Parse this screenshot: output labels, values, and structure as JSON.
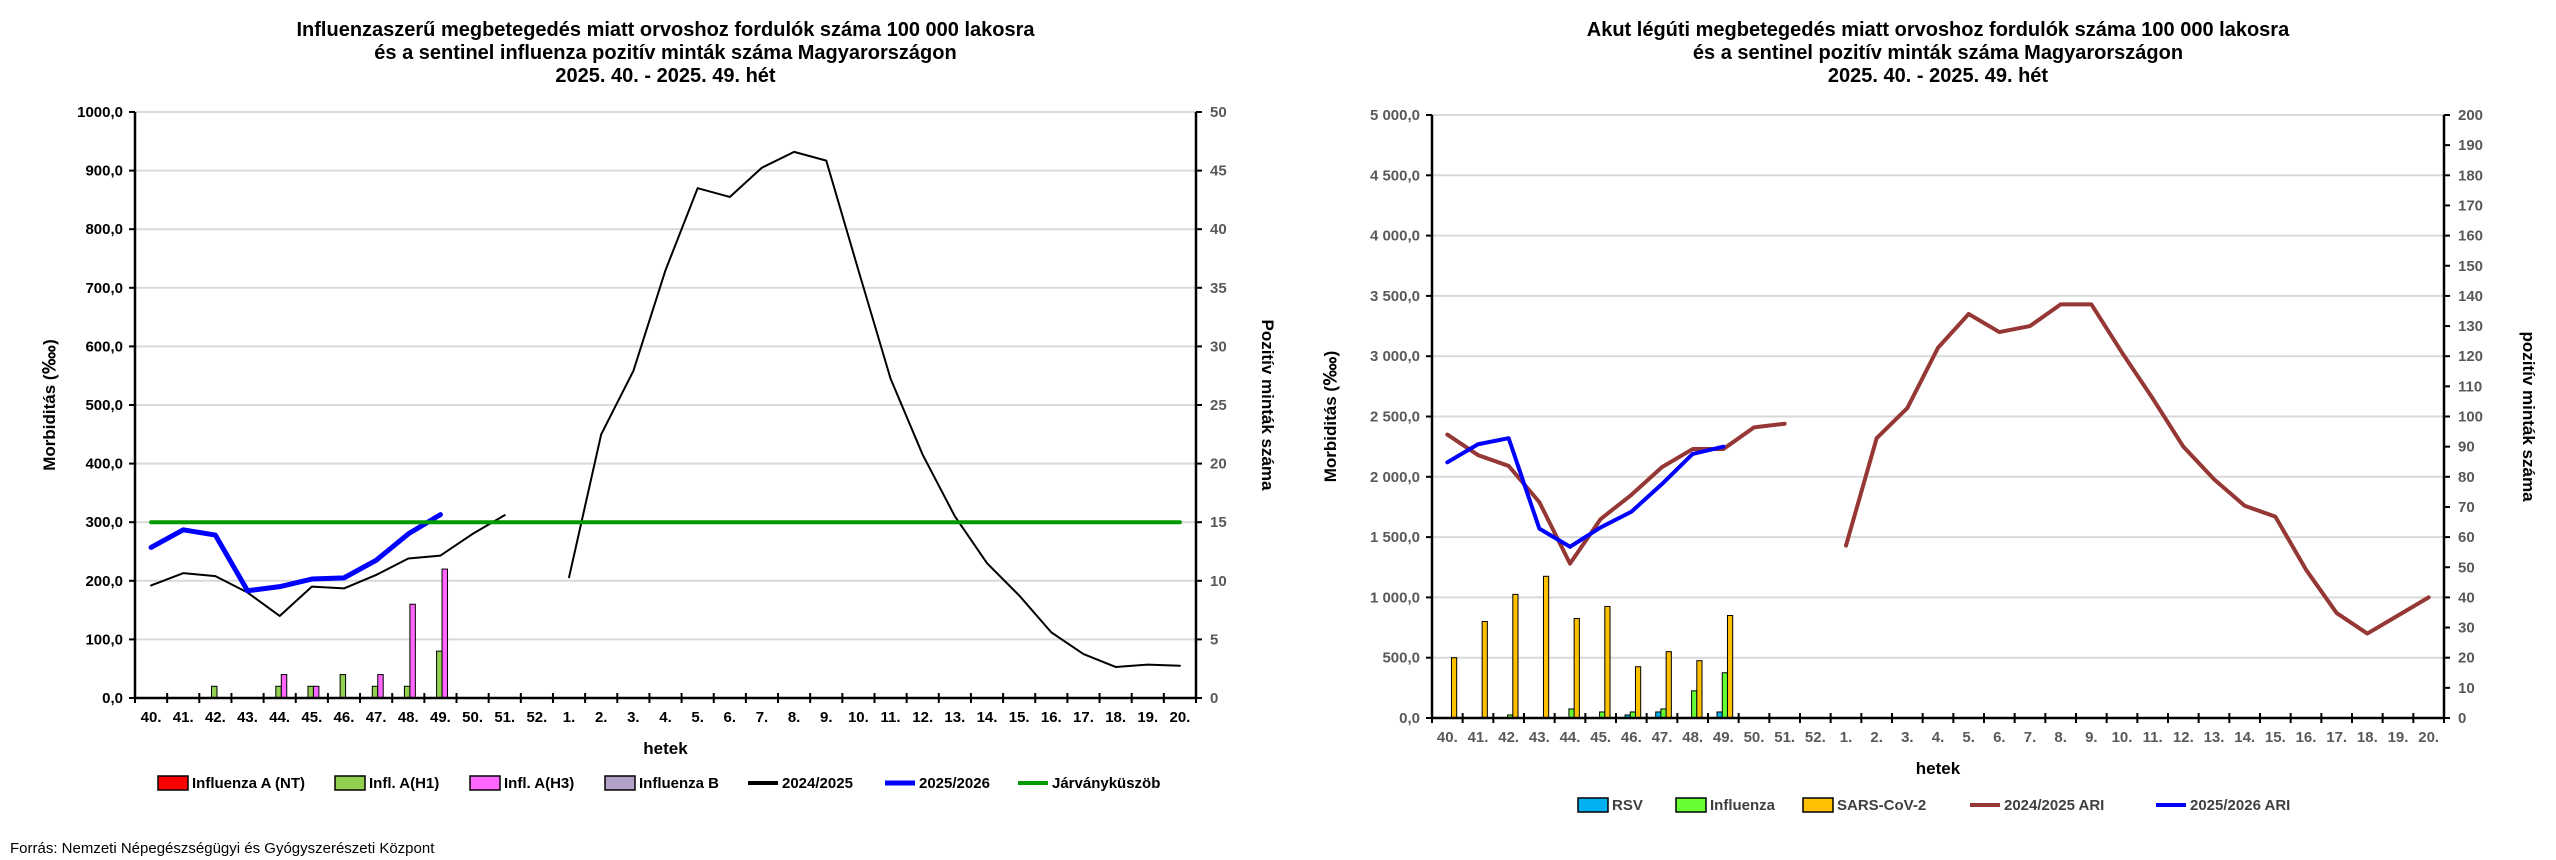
{
  "source": "Forrás: Nemzeti Népegészségügyi és Gyógyszerészeti Központ",
  "chart_data": [
    {
      "type": "bar",
      "title_lines": [
        "Influenzaszerű megbetegedés miatt orvoshoz fordulók száma 100 000 lakosra",
        "és a sentinel influenza pozitív minták száma Magyarországon",
        "2025. 40. - 2025. 49. hét"
      ],
      "xlabel": "hetek",
      "ylabel": "Morbiditás (‱)",
      "y2label": "Pozitív minták száma",
      "ylim": [
        0,
        1000
      ],
      "y2lim": [
        0,
        50
      ],
      "yticks": [
        "0,0",
        "100,0",
        "200,0",
        "300,0",
        "400,0",
        "500,0",
        "600,0",
        "700,0",
        "800,0",
        "900,0",
        "1000,0"
      ],
      "y2ticks": [
        "0",
        "5",
        "10",
        "15",
        "20",
        "25",
        "30",
        "35",
        "40",
        "45",
        "50"
      ],
      "grid": true,
      "legend_position": "bottom",
      "categories": [
        "40.",
        "41.",
        "42.",
        "43.",
        "44.",
        "45.",
        "46.",
        "47.",
        "48.",
        "49.",
        "50.",
        "51.",
        "52.",
        "1.",
        "2.",
        "3.",
        "4.",
        "5.",
        "6.",
        "7.",
        "8.",
        "9.",
        "10.",
        "11.",
        "12.",
        "13.",
        "14.",
        "15.",
        "16.",
        "17.",
        "18.",
        "19.",
        "20."
      ],
      "bar_series": [
        {
          "name": "Influenza A (NT)",
          "color": "#ff0000",
          "axis": "right",
          "values": [
            0,
            0,
            0,
            0,
            0,
            0,
            0,
            0,
            0,
            0,
            null,
            null,
            null,
            null,
            null,
            null,
            null,
            null,
            null,
            null,
            null,
            null,
            null,
            null,
            null,
            null,
            null,
            null,
            null,
            null,
            null,
            null,
            null
          ]
        },
        {
          "name": "Infl. A(H1)",
          "color": "#92d050",
          "axis": "right",
          "values": [
            0,
            0,
            1,
            0,
            1,
            1,
            2,
            1,
            1,
            4,
            null,
            null,
            null,
            null,
            null,
            null,
            null,
            null,
            null,
            null,
            null,
            null,
            null,
            null,
            null,
            null,
            null,
            null,
            null,
            null,
            null,
            null,
            null
          ]
        },
        {
          "name": "Infl. A(H3)",
          "color": "#ff66ff",
          "axis": "right",
          "values": [
            0,
            0,
            0,
            0,
            2,
            1,
            0,
            2,
            8,
            11,
            null,
            null,
            null,
            null,
            null,
            null,
            null,
            null,
            null,
            null,
            null,
            null,
            null,
            null,
            null,
            null,
            null,
            null,
            null,
            null,
            null,
            null,
            null
          ]
        },
        {
          "name": "Influenza B",
          "color": "#b3a2c7",
          "axis": "right",
          "values": [
            0,
            0,
            0,
            0,
            0,
            0,
            0,
            0,
            0,
            0,
            null,
            null,
            null,
            null,
            null,
            null,
            null,
            null,
            null,
            null,
            null,
            null,
            null,
            null,
            null,
            null,
            null,
            null,
            null,
            null,
            null,
            null,
            null
          ]
        }
      ],
      "line_series": [
        {
          "name": "2024/2025",
          "color": "#000000",
          "width": 2,
          "segments": [
            {
              "start": 0,
              "values": [
                192,
                213,
                208,
                180,
                140,
                190,
                187,
                210,
                238,
                243,
                280,
                312
              ]
            },
            {
              "start": 13,
              "values": [
                206,
                450,
                558,
                730,
                870,
                855,
                905,
                932,
                917,
                730,
                545,
                415,
                310,
                230,
                175,
                112,
                75,
                53,
                57,
                55
              ]
            }
          ]
        },
        {
          "name": "2025/2026",
          "color": "#0000ff",
          "width": 5,
          "segments": [
            {
              "start": 0,
              "values": [
                257,
                287,
                278,
                183,
                190,
                203,
                205,
                235,
                280,
                313
              ]
            }
          ]
        },
        {
          "name": "Járványküszöb",
          "color": "#009900",
          "width": 4,
          "segments": [
            {
              "start": 0,
              "values": [
                300,
                300,
                300,
                300,
                300,
                300,
                300,
                300,
                300,
                300,
                300,
                300,
                300,
                300,
                300,
                300,
                300,
                300,
                300,
                300,
                300,
                300,
                300,
                300,
                300,
                300,
                300,
                300,
                300,
                300,
                300,
                300,
                300
              ]
            }
          ]
        }
      ]
    },
    {
      "type": "bar",
      "title_lines": [
        "Akut légúti megbetegedés miatt orvoshoz fordulók száma 100 000 lakosra",
        "és a sentinel pozitív minták száma Magyarországon",
        "2025. 40. - 2025. 49. hét"
      ],
      "xlabel": "hetek",
      "ylabel": "Morbiditás (‱)",
      "y2label": "pozitív minták száma",
      "ylim": [
        0,
        5000
      ],
      "y2lim": [
        0,
        200
      ],
      "yticks": [
        "0,0",
        "500,0",
        "1 000,0",
        "1 500,0",
        "2 000,0",
        "2 500,0",
        "3 000,0",
        "3 500,0",
        "4 000,0",
        "4 500,0",
        "5 000,0"
      ],
      "y2ticks": [
        "0",
        "10",
        "20",
        "30",
        "40",
        "50",
        "60",
        "70",
        "80",
        "90",
        "100",
        "110",
        "120",
        "130",
        "140",
        "150",
        "160",
        "170",
        "180",
        "190",
        "200"
      ],
      "grid": true,
      "legend_position": "bottom",
      "categories": [
        "40.",
        "41.",
        "42.",
        "43.",
        "44.",
        "45.",
        "46.",
        "47.",
        "48.",
        "49.",
        "50.",
        "51.",
        "52.",
        "1.",
        "2.",
        "3.",
        "4.",
        "5.",
        "6.",
        "7.",
        "8.",
        "9.",
        "10.",
        "11.",
        "12.",
        "13.",
        "14.",
        "15.",
        "16.",
        "17.",
        "18.",
        "19.",
        "20."
      ],
      "bar_series": [
        {
          "name": "RSV",
          "color": "#00b0f0",
          "axis": "right",
          "values": [
            0,
            0,
            0,
            0,
            0,
            0,
            1,
            2,
            0,
            2,
            null,
            null,
            null,
            null,
            null,
            null,
            null,
            null,
            null,
            null,
            null,
            null,
            null,
            null,
            null,
            null,
            null,
            null,
            null,
            null,
            null,
            null,
            null
          ]
        },
        {
          "name": "Influenza",
          "color": "#66ff33",
          "axis": "right",
          "values": [
            0,
            0,
            1,
            0,
            3,
            2,
            2,
            3,
            9,
            15,
            null,
            null,
            null,
            null,
            null,
            null,
            null,
            null,
            null,
            null,
            null,
            null,
            null,
            null,
            null,
            null,
            null,
            null,
            null,
            null,
            null,
            null,
            null
          ]
        },
        {
          "name": "SARS-CoV-2",
          "color": "#ffc000",
          "axis": "right",
          "values": [
            20,
            32,
            41,
            47,
            33,
            37,
            17,
            22,
            19,
            34,
            null,
            null,
            null,
            null,
            null,
            null,
            null,
            null,
            null,
            null,
            null,
            null,
            null,
            null,
            null,
            null,
            null,
            null,
            null,
            null,
            null,
            null,
            null
          ]
        }
      ],
      "line_series": [
        {
          "name": "2024/2025 ARI",
          "color": "#953735",
          "width": 4,
          "segments": [
            {
              "start": 0,
              "values": [
                2350,
                2180,
                2090,
                1790,
                1280,
                1650,
                1850,
                2080,
                2230,
                2230,
                2410,
                2440
              ]
            },
            {
              "start": 13,
              "values": [
                1430,
                2320,
                2570,
                3070,
                3350,
                3200,
                3250,
                3430,
                3430,
                3030,
                2650,
                2250,
                1980,
                1760,
                1670,
                1230,
                870,
                700,
                850,
                1000
              ]
            }
          ]
        },
        {
          "name": "2025/2026 ARI",
          "color": "#0000ff",
          "width": 4,
          "segments": [
            {
              "start": 0,
              "values": [
                2120,
                2270,
                2320,
                1570,
                1420,
                1580,
                1710,
                1940,
                2190,
                2250
              ]
            }
          ]
        }
      ]
    }
  ]
}
